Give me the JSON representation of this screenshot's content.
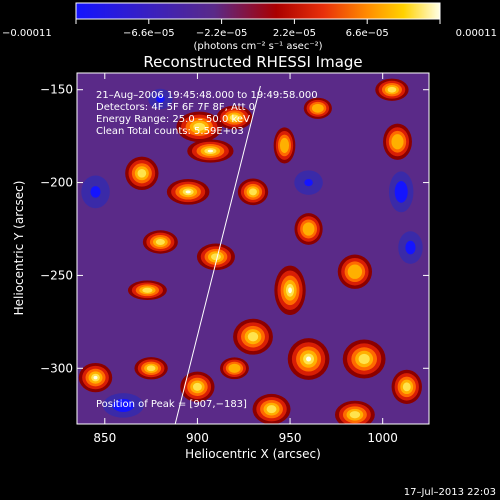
{
  "chart_data": {
    "type": "heatmap",
    "title": "Reconstructed RHESSI Image",
    "xlabel": "Heliocentric X (arcsec)",
    "ylabel": "Heliocentric Y (arcsec)",
    "xlim": [
      835,
      1025
    ],
    "ylim": [
      -330,
      -141
    ],
    "x_ticks": [
      850,
      900,
      950,
      1000
    ],
    "x_tick_labels": [
      "850",
      "900",
      "950",
      "1000"
    ],
    "y_ticks": [
      -150,
      -200,
      -250,
      -300
    ],
    "y_tick_labels": [
      "−150",
      "−200",
      "−250",
      "−300"
    ],
    "colorbar": {
      "min": -0.00011,
      "max": 0.00011,
      "ticks": [
        -0.00011,
        -6.6e-05,
        -2.2e-05,
        2.2e-05,
        6.6e-05,
        0.00011
      ],
      "tick_labels": [
        "−0.00011",
        "−6.6e−05",
        "−2.2e−05",
        "2.2e−05",
        "6.6e−05",
        "0.00011"
      ],
      "units": "(photons cm⁻² s⁻¹ asec⁻²)"
    },
    "info_lines": [
      "21–Aug–2006 19:45:48.000 to 19:49:58.000",
      "Detectors: 4F 5F 6F 7F 8F, Att 0",
      "Energy Range: 25.0 – 50.0 keV",
      "Clean    Total counts: 5.59E+03"
    ],
    "peak_label": "Position of Peak = [907,−183]",
    "limb_line": [
      [
        888,
        -330
      ],
      [
        934,
        -148
      ]
    ],
    "colors": {
      "background": "#000000",
      "text": "#ffffff",
      "map_base": "#5a2a88",
      "cmap": [
        "#1414ff",
        "#5a2a88",
        "#aa0000",
        "#e8300a",
        "#ff8c00",
        "#ffd200",
        "#ffffe6"
      ]
    },
    "sources": [
      {
        "x": 907,
        "y": -183,
        "sx": 10,
        "sy": 5,
        "a": 1.0
      },
      {
        "x": 920,
        "y": -165,
        "sx": 9,
        "sy": 6,
        "a": 0.65
      },
      {
        "x": 901,
        "y": -170,
        "sx": 12,
        "sy": 8,
        "a": 0.55
      },
      {
        "x": 870,
        "y": -195,
        "sx": 9,
        "sy": 9,
        "a": 0.5
      },
      {
        "x": 895,
        "y": -205,
        "sx": 10,
        "sy": 6,
        "a": 0.8
      },
      {
        "x": 930,
        "y": -205,
        "sx": 8,
        "sy": 7,
        "a": 0.55
      },
      {
        "x": 947,
        "y": -180,
        "sx": 6,
        "sy": 10,
        "a": 0.45
      },
      {
        "x": 965,
        "y": -160,
        "sx": 8,
        "sy": 6,
        "a": 0.4
      },
      {
        "x": 1005,
        "y": -150,
        "sx": 9,
        "sy": 6,
        "a": 0.5
      },
      {
        "x": 1008,
        "y": -178,
        "sx": 8,
        "sy": 10,
        "a": 0.45
      },
      {
        "x": 960,
        "y": -225,
        "sx": 8,
        "sy": 9,
        "a": 0.4
      },
      {
        "x": 985,
        "y": -248,
        "sx": 10,
        "sy": 10,
        "a": 0.35
      },
      {
        "x": 880,
        "y": -232,
        "sx": 9,
        "sy": 6,
        "a": 0.6
      },
      {
        "x": 910,
        "y": -240,
        "sx": 10,
        "sy": 7,
        "a": 0.55
      },
      {
        "x": 873,
        "y": -258,
        "sx": 10,
        "sy": 5,
        "a": 0.6
      },
      {
        "x": 950,
        "y": -258,
        "sx": 7,
        "sy": 11,
        "a": 0.92
      },
      {
        "x": 930,
        "y": -283,
        "sx": 10,
        "sy": 9,
        "a": 0.65
      },
      {
        "x": 960,
        "y": -295,
        "sx": 10,
        "sy": 10,
        "a": 0.75
      },
      {
        "x": 990,
        "y": -295,
        "sx": 11,
        "sy": 10,
        "a": 0.6
      },
      {
        "x": 1013,
        "y": -310,
        "sx": 8,
        "sy": 9,
        "a": 0.55
      },
      {
        "x": 845,
        "y": -305,
        "sx": 8,
        "sy": 7,
        "a": 0.75
      },
      {
        "x": 875,
        "y": -300,
        "sx": 9,
        "sy": 6,
        "a": 0.5
      },
      {
        "x": 900,
        "y": -310,
        "sx": 9,
        "sy": 8,
        "a": 0.55
      },
      {
        "x": 940,
        "y": -322,
        "sx": 10,
        "sy": 8,
        "a": 0.55
      },
      {
        "x": 985,
        "y": -325,
        "sx": 10,
        "sy": 7,
        "a": 0.65
      },
      {
        "x": 920,
        "y": -300,
        "sx": 8,
        "sy": 6,
        "a": 0.45
      }
    ],
    "negatives": [
      {
        "x": 860,
        "y": -320,
        "sx": 10,
        "sy": 6,
        "a": 0.9
      },
      {
        "x": 1010,
        "y": -205,
        "sx": 6,
        "sy": 10,
        "a": 0.9
      },
      {
        "x": 1015,
        "y": -235,
        "sx": 6,
        "sy": 8,
        "a": 0.7
      },
      {
        "x": 845,
        "y": -205,
        "sx": 7,
        "sy": 8,
        "a": 0.6
      },
      {
        "x": 960,
        "y": -200,
        "sx": 7,
        "sy": 6,
        "a": 0.5
      },
      {
        "x": 880,
        "y": -155,
        "sx": 6,
        "sy": 5,
        "a": 0.6
      }
    ]
  },
  "footer": {
    "timestamp": "17–Jul–2013 22:03"
  }
}
